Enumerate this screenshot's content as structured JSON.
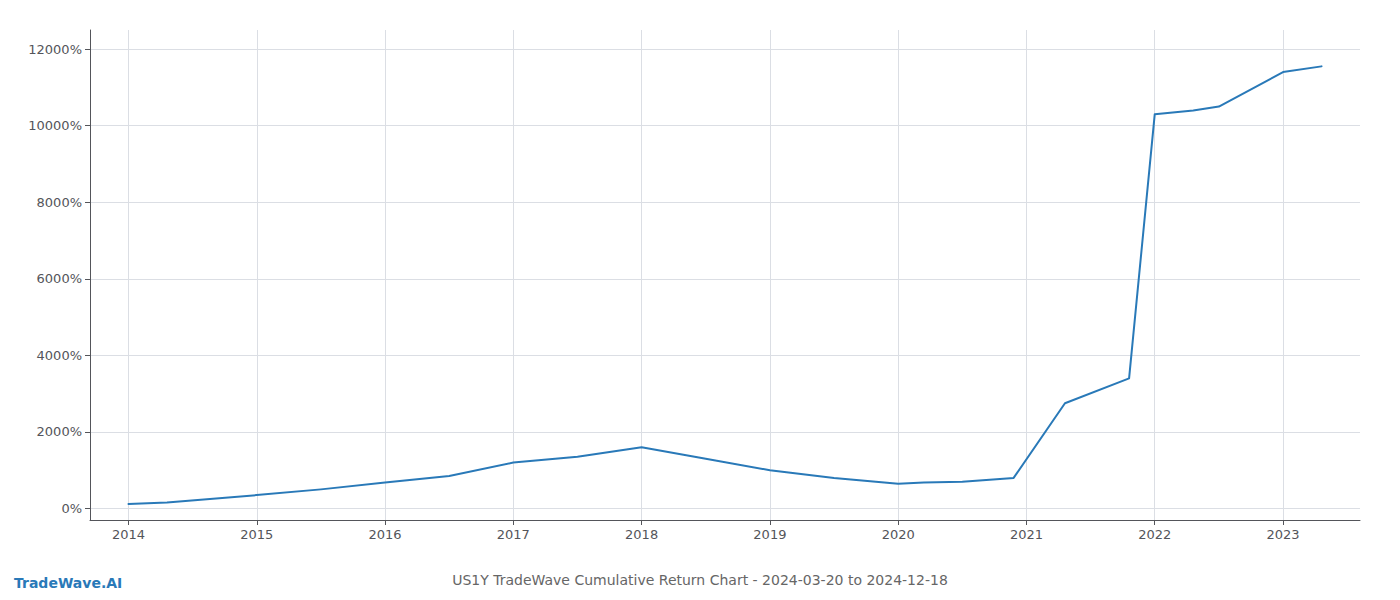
{
  "chart_data": {
    "type": "line",
    "title": "US1Y TradeWave Cumulative Return Chart - 2024-03-20 to 2024-12-18",
    "annotations": [
      "TradeWave.AI"
    ],
    "x": [
      2014.0,
      2014.3,
      2015.0,
      2015.5,
      2016.0,
      2016.5,
      2017.0,
      2017.5,
      2018.0,
      2018.5,
      2019.0,
      2019.5,
      2020.0,
      2020.2,
      2020.5,
      2020.9,
      2021.3,
      2021.8,
      2022.0,
      2022.3,
      2022.5,
      2023.0,
      2023.3
    ],
    "values": [
      120,
      160,
      350,
      500,
      680,
      850,
      1200,
      1350,
      1600,
      1300,
      1000,
      800,
      650,
      680,
      700,
      800,
      2750,
      3400,
      10300,
      10400,
      10500,
      11400,
      11550
    ],
    "color": "#2979b8",
    "xlim": [
      2013.7,
      2023.6
    ],
    "ylim": [
      -300,
      12500
    ],
    "xticks": [
      2014,
      2015,
      2016,
      2017,
      2018,
      2019,
      2020,
      2021,
      2022,
      2023
    ],
    "yticks": [
      {
        "value": 0,
        "label": "0%"
      },
      {
        "value": 2000,
        "label": "2000%"
      },
      {
        "value": 4000,
        "label": "4000%"
      },
      {
        "value": 6000,
        "label": "6000%"
      },
      {
        "value": 8000,
        "label": "8000%"
      },
      {
        "value": 10000,
        "label": "10000%"
      },
      {
        "value": 12000,
        "label": "12000%"
      }
    ],
    "grid": true
  }
}
